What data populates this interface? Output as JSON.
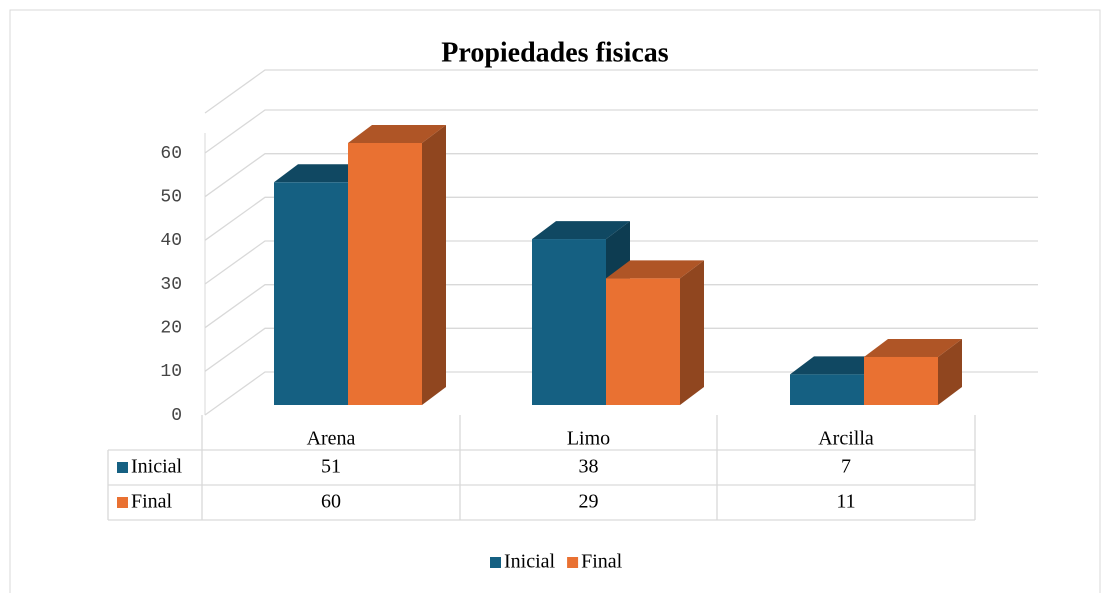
{
  "chart_data": {
    "type": "bar3d",
    "title": "Propiedades fisicas",
    "categories": [
      "Arena",
      "Limo",
      "Arcilla"
    ],
    "series": [
      {
        "name": "Inicial",
        "color": "#156082",
        "values": [
          51,
          38,
          7
        ]
      },
      {
        "name": "Final",
        "color": "#e97132",
        "values": [
          60,
          29,
          11
        ]
      }
    ],
    "ylim": [
      0,
      60
    ],
    "yticks": [
      0,
      10,
      20,
      30,
      40,
      50,
      60
    ],
    "grid": true,
    "legend": "bottom",
    "data_table": true
  }
}
